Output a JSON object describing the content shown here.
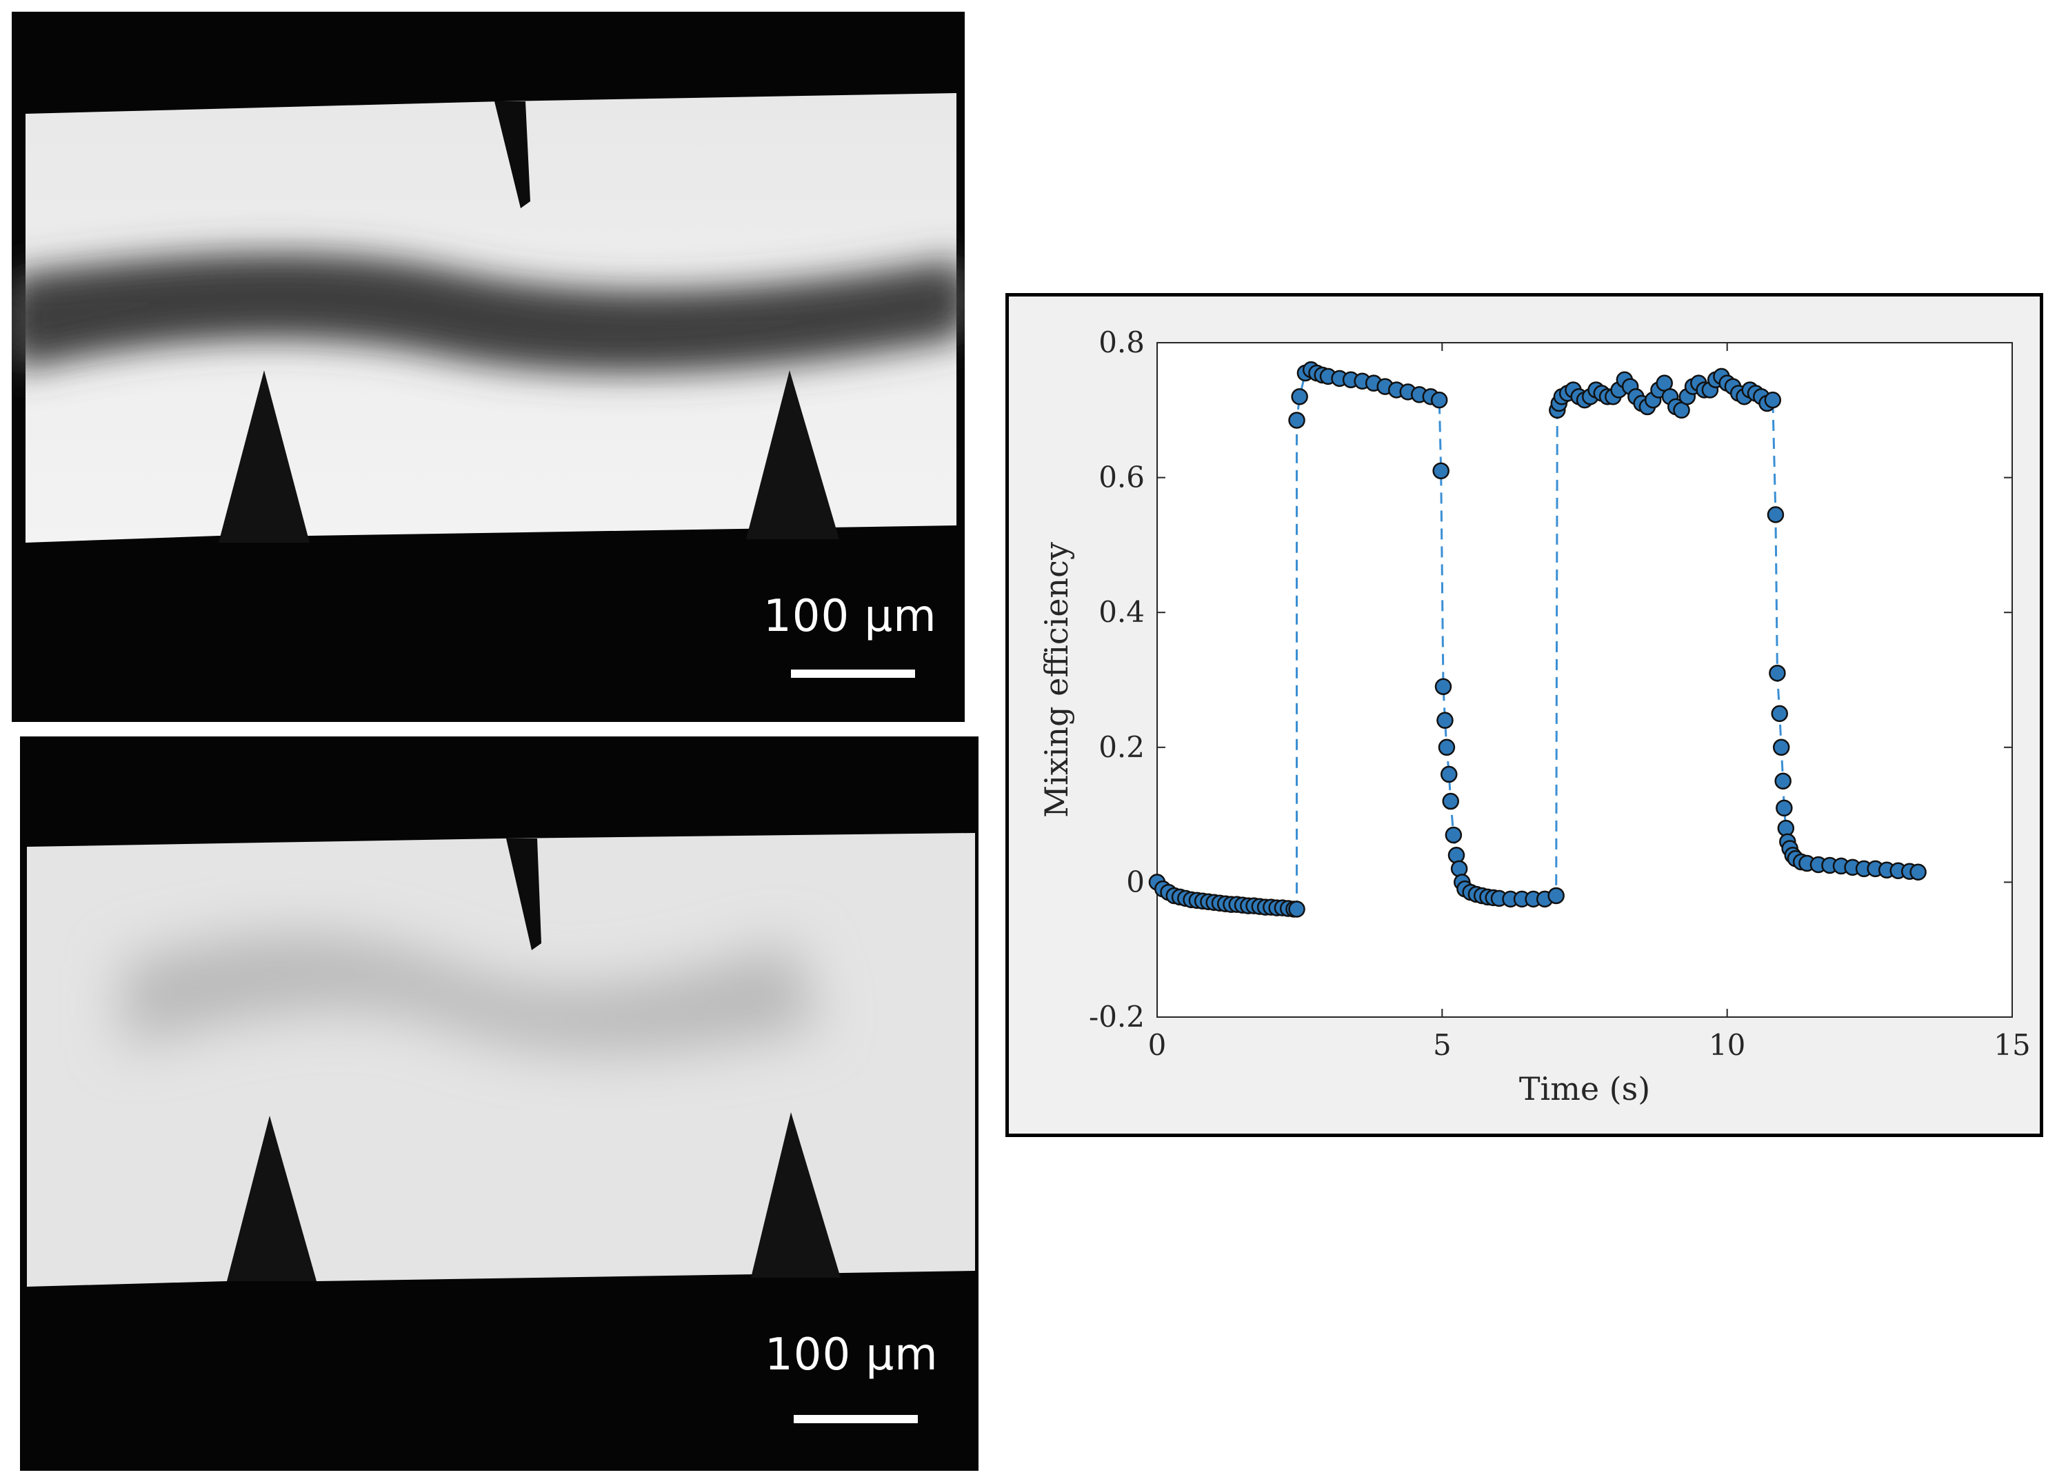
{
  "micrographs": [
    {
      "scale_label": "100 µm"
    },
    {
      "scale_label": "100 µm"
    }
  ],
  "chart_data": {
    "type": "scatter",
    "xlabel": "Time (s)",
    "ylabel": "Mixing efficiency",
    "xlim": [
      0,
      15
    ],
    "ylim": [
      -0.2,
      0.8
    ],
    "xticks": [
      0,
      5,
      10,
      15
    ],
    "yticks": [
      -0.2,
      0,
      0.2,
      0.4,
      0.6,
      0.8
    ],
    "xtick_labels": [
      "0",
      "5",
      "10",
      "15"
    ],
    "ytick_labels": [
      "-0.2",
      "0",
      "0.2",
      "0.4",
      "0.6",
      "0.8"
    ],
    "grid": false,
    "marker_color": "#2e78b8",
    "line_color": "#3a8fd4",
    "line_style": "dashed",
    "series": [
      {
        "x": [
          0.0,
          0.1,
          0.2,
          0.3,
          0.4,
          0.5,
          0.6,
          0.7,
          0.8,
          0.9,
          1.0,
          1.1,
          1.2,
          1.3,
          1.4,
          1.5,
          1.6,
          1.7,
          1.8,
          1.9,
          2.0,
          2.1,
          2.2,
          2.3,
          2.4,
          2.45,
          2.45,
          2.5,
          2.6,
          2.7,
          2.8,
          2.9,
          3.0,
          3.2,
          3.4,
          3.6,
          3.8,
          4.0,
          4.2,
          4.4,
          4.6,
          4.8,
          4.95,
          4.98,
          5.02,
          5.05,
          5.08,
          5.12,
          5.15,
          5.2,
          5.25,
          5.3,
          5.35,
          5.4,
          5.5,
          5.6,
          5.7,
          5.8,
          5.9,
          6.0,
          6.2,
          6.4,
          6.6,
          6.8,
          7.0,
          7.02,
          7.05,
          7.1,
          7.2,
          7.3,
          7.4,
          7.5,
          7.6,
          7.7,
          7.8,
          7.9,
          8.0,
          8.1,
          8.2,
          8.3,
          8.4,
          8.5,
          8.6,
          8.7,
          8.8,
          8.9,
          9.0,
          9.1,
          9.2,
          9.3,
          9.4,
          9.5,
          9.6,
          9.7,
          9.8,
          9.9,
          10.0,
          10.1,
          10.2,
          10.3,
          10.4,
          10.5,
          10.6,
          10.7,
          10.8,
          10.85,
          10.88,
          10.92,
          10.95,
          10.98,
          11.0,
          11.03,
          11.06,
          11.1,
          11.15,
          11.2,
          11.3,
          11.4,
          11.6,
          11.8,
          12.0,
          12.2,
          12.4,
          12.6,
          12.8,
          13.0,
          13.2,
          13.35
        ],
        "y": [
          0.0,
          -0.01,
          -0.015,
          -0.02,
          -0.022,
          -0.024,
          -0.026,
          -0.027,
          -0.028,
          -0.029,
          -0.03,
          -0.031,
          -0.032,
          -0.033,
          -0.033,
          -0.034,
          -0.035,
          -0.035,
          -0.036,
          -0.037,
          -0.037,
          -0.038,
          -0.038,
          -0.039,
          -0.04,
          -0.04,
          0.685,
          0.72,
          0.755,
          0.76,
          0.755,
          0.752,
          0.75,
          0.747,
          0.745,
          0.743,
          0.74,
          0.735,
          0.73,
          0.727,
          0.723,
          0.72,
          0.715,
          0.61,
          0.29,
          0.24,
          0.2,
          0.16,
          0.12,
          0.07,
          0.04,
          0.02,
          0.0,
          -0.01,
          -0.015,
          -0.018,
          -0.02,
          -0.022,
          -0.023,
          -0.024,
          -0.025,
          -0.025,
          -0.025,
          -0.025,
          -0.02,
          0.7,
          0.71,
          0.72,
          0.725,
          0.73,
          0.72,
          0.715,
          0.72,
          0.73,
          0.725,
          0.72,
          0.72,
          0.73,
          0.745,
          0.735,
          0.72,
          0.71,
          0.705,
          0.715,
          0.73,
          0.74,
          0.72,
          0.705,
          0.7,
          0.72,
          0.735,
          0.74,
          0.73,
          0.73,
          0.745,
          0.75,
          0.74,
          0.735,
          0.725,
          0.72,
          0.73,
          0.725,
          0.72,
          0.71,
          0.715,
          0.545,
          0.31,
          0.25,
          0.2,
          0.15,
          0.11,
          0.08,
          0.06,
          0.05,
          0.04,
          0.035,
          0.03,
          0.028,
          0.026,
          0.025,
          0.024,
          0.022,
          0.02,
          0.02,
          0.018,
          0.017,
          0.016,
          0.015
        ]
      }
    ]
  }
}
